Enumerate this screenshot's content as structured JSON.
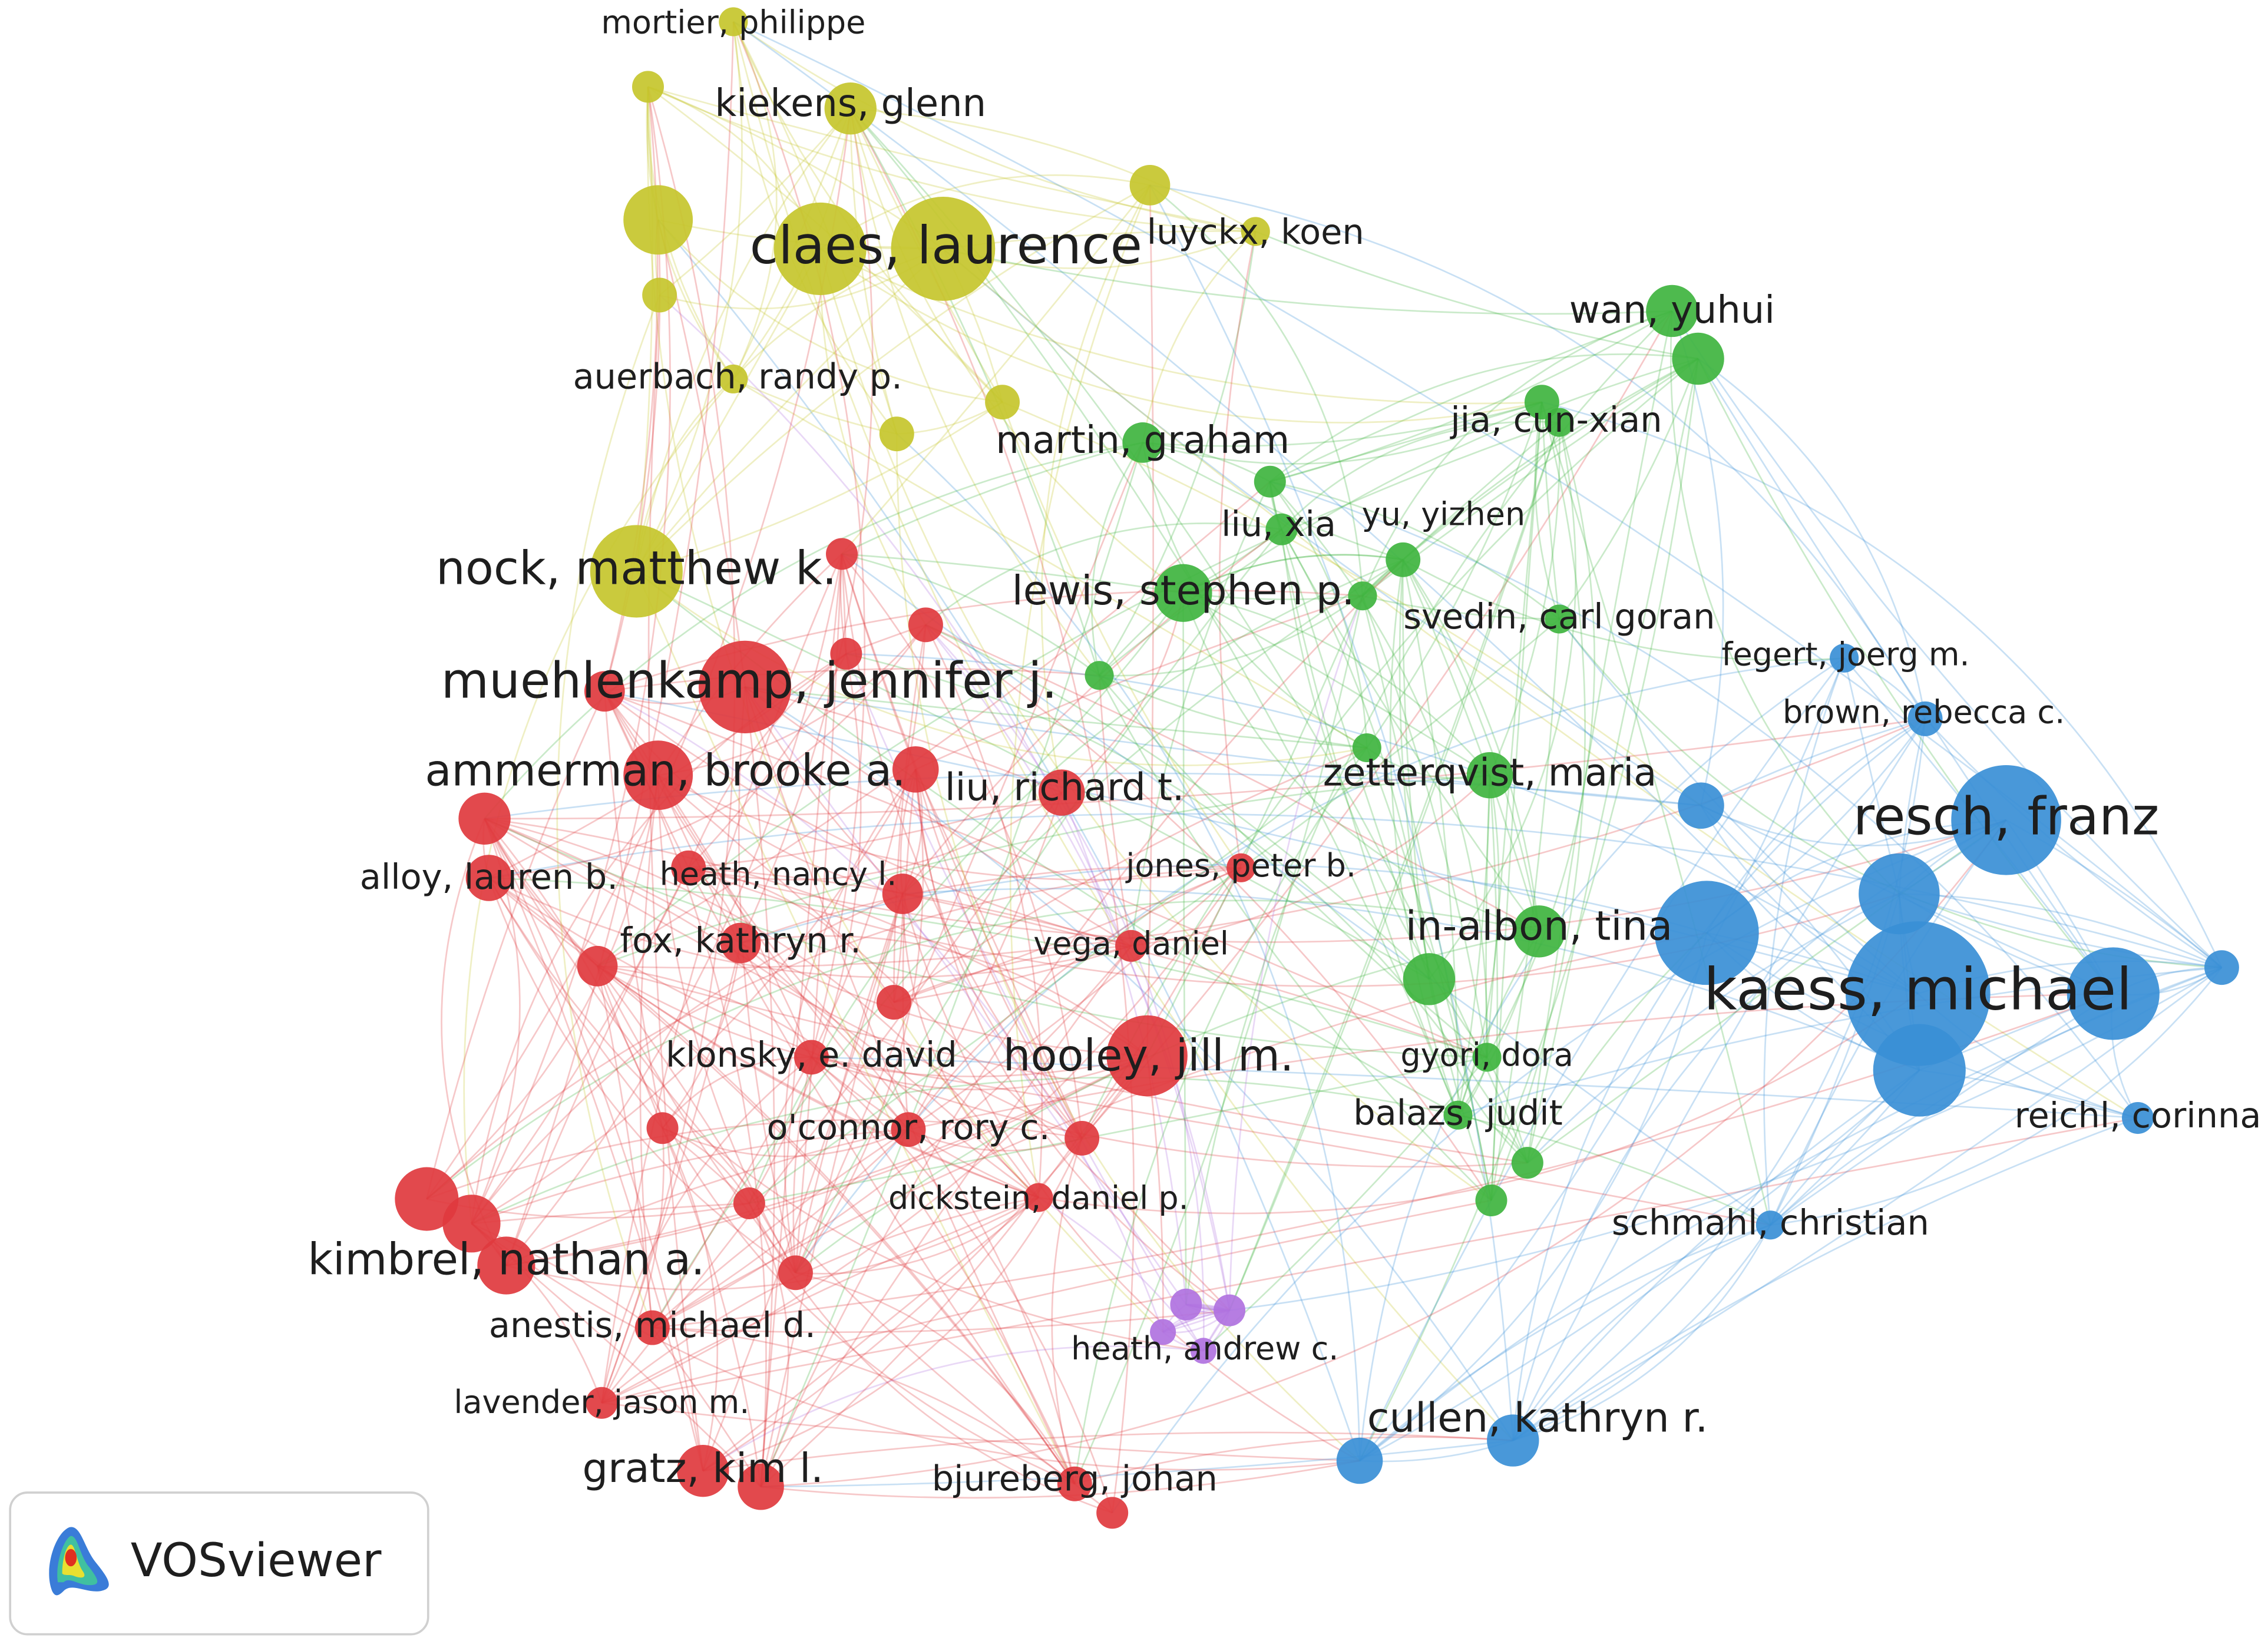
{
  "nodes": [
    {
      "label": "mortier, philippe"
    },
    {
      "label": "kiekens, glenn"
    },
    {
      "label": "claes, laurence"
    },
    {
      "label": "luyckx, koen"
    },
    {
      "label": "wan, yuhui"
    },
    {
      "label": "auerbach, randy p."
    },
    {
      "label": "jia, cun-xian"
    },
    {
      "label": "martin, graham"
    },
    {
      "label": "liu, xia"
    },
    {
      "label": "yu, yizhen"
    },
    {
      "label": "nock, matthew k."
    },
    {
      "label": "lewis, stephen p."
    },
    {
      "label": "svedin, carl goran"
    },
    {
      "label": "fegert, joerg m."
    },
    {
      "label": "muehlenkamp, jennifer j."
    },
    {
      "label": "brown, rebecca c."
    },
    {
      "label": "ammerman, brooke a."
    },
    {
      "label": "liu, richard t."
    },
    {
      "label": "zetterqvist, maria"
    },
    {
      "label": "resch, franz"
    },
    {
      "label": "alloy, lauren b."
    },
    {
      "label": "heath, nancy l."
    },
    {
      "label": "jones, peter b."
    },
    {
      "label": "in-albon, tina"
    },
    {
      "label": "kaess, michael"
    },
    {
      "label": "fox, kathryn r."
    },
    {
      "label": "vega, daniel"
    },
    {
      "label": "klonsky, e. david"
    },
    {
      "label": "hooley, jill m."
    },
    {
      "label": "gyori, dora"
    },
    {
      "label": "balazs, judit"
    },
    {
      "label": "reichl, corinna"
    },
    {
      "label": "o'connor, rory c."
    },
    {
      "label": "dickstein, daniel p."
    },
    {
      "label": "schmahl, christian"
    },
    {
      "label": "kimbrel, nathan a."
    },
    {
      "label": "anestis, michael d."
    },
    {
      "label": "heath, andrew c."
    },
    {
      "label": "lavender, jason m."
    },
    {
      "label": "cullen, kathryn r."
    },
    {
      "label": "gratz, kim l."
    },
    {
      "label": "bjureberg, johan"
    }
  ],
  "logo": {
    "text": "VOSviewer"
  }
}
